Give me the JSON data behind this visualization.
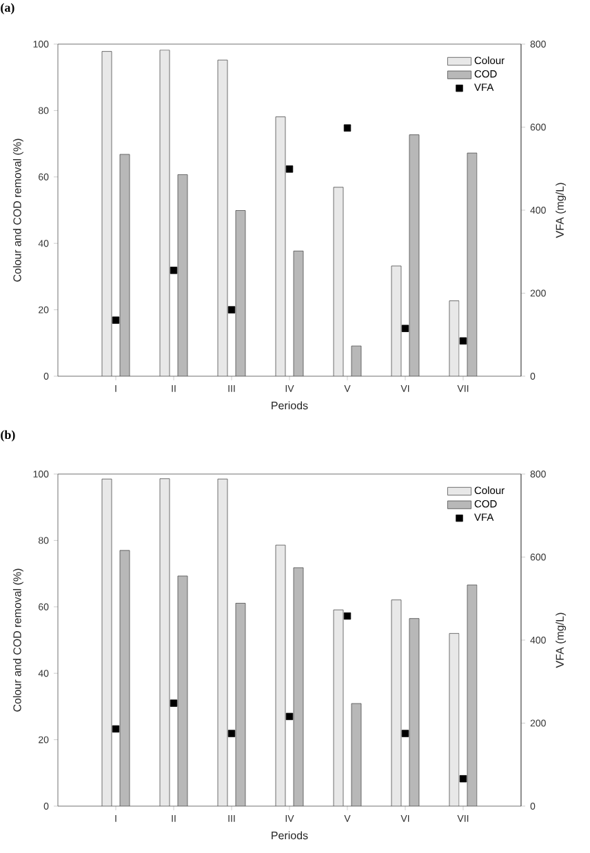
{
  "chart_data": [
    {
      "type": "bar",
      "title": "(a)",
      "xlabel": "Periods",
      "ylabel": "Colour and COD removal (%)",
      "y2label": "VFA (mg/L)",
      "categories": [
        "I",
        "II",
        "III",
        "IV",
        "V",
        "VI",
        "VII"
      ],
      "series": [
        {
          "name": "Colour",
          "color": "#e8e8e8",
          "values": [
            97.8,
            98.2,
            95.2,
            78.1,
            56.9,
            33.2,
            22.7
          ]
        },
        {
          "name": "COD",
          "color": "#b8b8b8",
          "values": [
            66.8,
            60.7,
            49.9,
            37.7,
            9.1,
            72.7,
            67.2
          ]
        },
        {
          "name": "VFA",
          "type": "scatter",
          "axis": "y2",
          "color": "#000000",
          "values": [
            135,
            255,
            160,
            499,
            598,
            115,
            85
          ]
        }
      ],
      "ylim": [
        0,
        100
      ],
      "yticks": [
        0,
        20,
        40,
        60,
        80,
        100
      ],
      "y2lim": [
        0,
        800
      ],
      "y2ticks": [
        0,
        200,
        400,
        600,
        800
      ],
      "legend": "top right",
      "marker": "square"
    },
    {
      "type": "bar",
      "title": "(b)",
      "xlabel": "Periods",
      "ylabel": "Colour and COD removal (%)",
      "y2label": "VFA (mg/L)",
      "categories": [
        "I",
        "II",
        "III",
        "IV",
        "V",
        "VI",
        "VII"
      ],
      "series": [
        {
          "name": "Colour",
          "color": "#e8e8e8",
          "values": [
            98.5,
            98.6,
            98.5,
            78.6,
            59.1,
            62.1,
            52.0
          ]
        },
        {
          "name": "COD",
          "color": "#b8b8b8",
          "values": [
            77.0,
            69.3,
            61.1,
            71.8,
            30.9,
            56.5,
            66.6
          ]
        },
        {
          "name": "VFA",
          "type": "scatter",
          "axis": "y2",
          "color": "#000000",
          "values": [
            186,
            248,
            175,
            216,
            458,
            175,
            66
          ]
        }
      ],
      "ylim": [
        0,
        100
      ],
      "yticks": [
        0,
        20,
        40,
        60,
        80,
        100
      ],
      "y2lim": [
        0,
        800
      ],
      "y2ticks": [
        0,
        200,
        400,
        600,
        800
      ],
      "legend": "top right",
      "marker": "square"
    }
  ]
}
